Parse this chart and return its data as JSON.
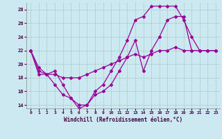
{
  "xlabel": "Windchill (Refroidissement éolien,°C)",
  "bg_color": "#cce8f0",
  "line_color": "#990099",
  "grid_color": "#aacccc",
  "xlim": [
    -0.5,
    23.5
  ],
  "ylim": [
    13.5,
    29.0
  ],
  "yticks": [
    14,
    16,
    18,
    20,
    22,
    24,
    26,
    28
  ],
  "xticks": [
    0,
    1,
    2,
    3,
    4,
    5,
    6,
    7,
    8,
    9,
    10,
    11,
    12,
    13,
    14,
    15,
    16,
    17,
    18,
    19,
    20,
    21,
    22,
    23
  ],
  "line1_x": [
    0,
    1,
    2,
    3,
    4,
    5,
    6,
    7,
    8,
    9,
    10,
    11,
    12,
    13,
    14,
    15,
    16,
    17,
    18,
    19,
    20,
    21,
    22,
    23
  ],
  "line1_y": [
    22,
    19.5,
    18.5,
    19,
    17,
    15,
    14,
    14,
    16,
    17,
    19,
    21,
    23.5,
    26.5,
    27,
    28.5,
    28.5,
    28.5,
    28.5,
    26.5,
    24,
    22,
    22,
    22
  ],
  "line2_x": [
    0,
    1,
    2,
    3,
    4,
    5,
    6,
    7,
    8,
    9,
    10,
    11,
    12,
    13,
    14,
    15,
    16,
    17,
    18,
    19,
    20,
    21,
    22,
    23
  ],
  "line2_y": [
    22,
    19,
    18.5,
    17,
    15.5,
    15,
    13.5,
    14,
    15.5,
    16,
    17,
    19,
    21,
    23.5,
    19,
    22,
    24,
    26.5,
    27,
    27,
    22,
    22,
    22,
    22
  ],
  "line3_x": [
    0,
    1,
    2,
    3,
    4,
    5,
    6,
    7,
    8,
    9,
    10,
    11,
    12,
    13,
    14,
    15,
    16,
    17,
    18,
    19,
    20,
    21,
    22,
    23
  ],
  "line3_y": [
    22,
    18.5,
    18.5,
    18.5,
    18,
    18,
    18,
    18.5,
    19,
    19.5,
    20,
    20.5,
    21,
    21.5,
    21,
    21.5,
    22,
    22,
    22.5,
    22,
    22,
    22,
    22,
    22
  ]
}
